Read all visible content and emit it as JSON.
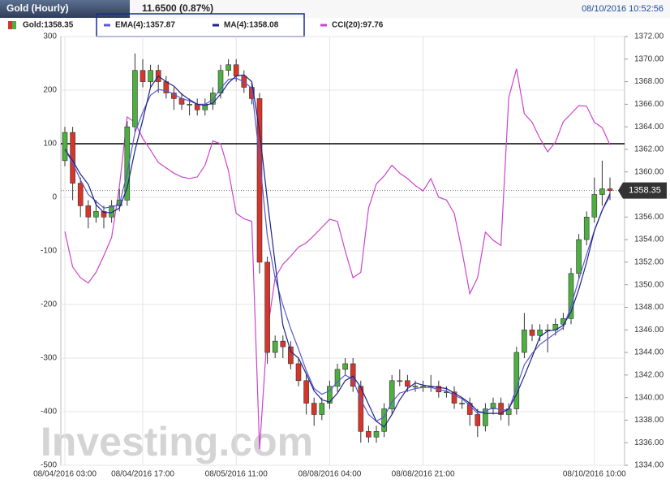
{
  "chart_data": {
    "type": "candlestick",
    "title": "Gold (Hourly)",
    "change": "11.6500 (0.87%)",
    "timestamp": "08/10/2016 10:52:56",
    "watermark": "Investing.com",
    "categories": [
      "08/04/2016 03:00",
      null,
      null,
      null,
      null,
      null,
      null,
      null,
      null,
      null,
      "08/04/2016 17:00",
      null,
      null,
      null,
      null,
      null,
      null,
      null,
      null,
      null,
      null,
      null,
      "08/05/2016 11:00",
      null,
      null,
      null,
      null,
      null,
      null,
      null,
      null,
      null,
      null,
      null,
      "08/08/2016 04:00",
      null,
      null,
      null,
      null,
      null,
      null,
      null,
      null,
      null,
      null,
      null,
      "08/08/2016 21:00",
      null,
      null,
      null,
      null,
      null,
      null,
      null,
      null,
      null,
      null,
      null,
      null,
      null,
      null,
      null,
      null,
      null,
      null,
      null,
      null,
      null,
      "08/10/2016 10:00",
      null,
      null
    ],
    "candles": {
      "name": "Gold:1358.35",
      "up_color": "#4caf3f",
      "down_color": "#d8352a",
      "open": [
        1361,
        1363.5,
        1359,
        1357,
        1356,
        1356.5,
        1356,
        1357,
        1357.5,
        1364,
        1369,
        1368,
        1369,
        1368,
        1367,
        1366.5,
        1366,
        1366,
        1365.5,
        1366,
        1367,
        1369,
        1369.5,
        1368.5,
        1367.5,
        1366.5,
        1352,
        1344,
        1345,
        1344.5,
        1343,
        1341.5,
        1339.5,
        1338.5,
        1339.5,
        1341,
        1342.5,
        1343,
        1341,
        1337,
        1336.5,
        1337,
        1339,
        1341.5,
        1341.5,
        1341,
        1341,
        1341,
        1341,
        1340.5,
        1340.5,
        1339.5,
        1339.5,
        1338.5,
        1337.5,
        1339,
        1339.5,
        1338.5,
        1339,
        1344,
        1346,
        1345.5,
        1346,
        1346,
        1346.5,
        1347,
        1351,
        1354,
        1356,
        1358,
        1358.5
      ],
      "high": [
        1364,
        1364,
        1359.5,
        1357.5,
        1357.5,
        1357,
        1357.5,
        1358.5,
        1364.5,
        1370.5,
        1370,
        1369.5,
        1369.5,
        1368.5,
        1367.5,
        1367,
        1366.5,
        1366.5,
        1366.5,
        1367.5,
        1369.5,
        1370,
        1370,
        1369,
        1368,
        1367,
        1352.5,
        1345.5,
        1345.5,
        1345,
        1343.5,
        1342,
        1340,
        1340,
        1341.5,
        1343,
        1343.5,
        1343.5,
        1341.5,
        1337.5,
        1337.5,
        1339.5,
        1342,
        1342.5,
        1342,
        1341.5,
        1341.5,
        1342,
        1341.5,
        1341,
        1341,
        1340,
        1340,
        1339,
        1339.5,
        1340,
        1340,
        1339.5,
        1344.5,
        1347.5,
        1346.5,
        1346.5,
        1346.5,
        1347,
        1347.5,
        1351.5,
        1354.5,
        1356.5,
        1359.5,
        1361,
        1359.5
      ],
      "low": [
        1360.5,
        1357.5,
        1356,
        1355,
        1355.5,
        1355,
        1355.5,
        1356.5,
        1357,
        1363.5,
        1367.5,
        1367.5,
        1367,
        1366.5,
        1365.5,
        1365.5,
        1365,
        1365,
        1365,
        1365.5,
        1366.5,
        1368.5,
        1368,
        1367,
        1366,
        1351,
        1343,
        1343.5,
        1343.5,
        1342.5,
        1341,
        1338.5,
        1337.5,
        1338,
        1339,
        1340.5,
        1342,
        1340.5,
        1336,
        1336,
        1336,
        1336.5,
        1338.5,
        1341,
        1340.5,
        1340.5,
        1340.5,
        1340.5,
        1340,
        1340,
        1339,
        1339,
        1337.5,
        1336.5,
        1337,
        1338.5,
        1338,
        1337.5,
        1338.5,
        1343.5,
        1345,
        1345,
        1344,
        1345.5,
        1346,
        1346.5,
        1350.5,
        1353.5,
        1355.5,
        1357,
        1357.5
      ],
      "close": [
        1363.5,
        1359,
        1357,
        1356,
        1356.5,
        1356,
        1357,
        1357.5,
        1364,
        1369,
        1368,
        1369,
        1368,
        1367,
        1366.5,
        1366,
        1366,
        1365.5,
        1366,
        1367,
        1369,
        1369.5,
        1368.5,
        1367.5,
        1366.5,
        1352,
        1344,
        1345,
        1344.5,
        1343,
        1341.5,
        1339.5,
        1338.5,
        1339.5,
        1341,
        1342.5,
        1343,
        1341,
        1337,
        1336.5,
        1337,
        1339,
        1341.5,
        1341.5,
        1341,
        1341,
        1341,
        1341,
        1340.5,
        1340.5,
        1339.5,
        1339.5,
        1338.5,
        1337.5,
        1339,
        1339.5,
        1338.5,
        1339,
        1344,
        1346,
        1345.5,
        1346,
        1346,
        1346.5,
        1347,
        1351,
        1354,
        1356,
        1358,
        1358.5,
        1358.35
      ]
    },
    "series": [
      {
        "name": "EMA(4):1357.87",
        "color": "#5a5ad0",
        "values": [
          1362,
          1360.8,
          1359.3,
          1358,
          1357.4,
          1356.8,
          1356.9,
          1357.1,
          1359.9,
          1363.5,
          1365.3,
          1366.8,
          1367.3,
          1367.2,
          1366.9,
          1366.5,
          1366.3,
          1366,
          1366,
          1366.4,
          1367.4,
          1368.2,
          1368.3,
          1368,
          1367.4,
          1361.2,
          1354.3,
          1350.6,
          1348.2,
          1346.1,
          1344.3,
          1342.4,
          1340.8,
          1340.3,
          1340.6,
          1341.4,
          1342,
          1341.6,
          1339.8,
          1338.5,
          1337.9,
          1338.3,
          1339.6,
          1340.4,
          1340.6,
          1340.8,
          1340.9,
          1340.9,
          1340.7,
          1340.6,
          1340.2,
          1339.9,
          1339.3,
          1338.6,
          1338.8,
          1339.1,
          1338.9,
          1338.9,
          1340.9,
          1342.9,
          1343.9,
          1344.7,
          1345.2,
          1345.7,
          1346.2,
          1348.1,
          1350.5,
          1352.7,
          1354.8,
          1356.6,
          1357.87
        ]
      },
      {
        "name": "MA(4):1358.08",
        "color": "#1c2585",
        "values": [
          1362,
          1361,
          1359.8,
          1358.9,
          1357.1,
          1356.4,
          1356.4,
          1356.8,
          1358.6,
          1361.9,
          1364.6,
          1367.5,
          1368.5,
          1368,
          1367.6,
          1366.9,
          1366.4,
          1366,
          1365.9,
          1366.1,
          1366.9,
          1367.9,
          1368.5,
          1368.6,
          1368,
          1363.6,
          1357.5,
          1351.9,
          1346.4,
          1344.1,
          1343.5,
          1342.1,
          1340.6,
          1339.8,
          1339.6,
          1340.4,
          1341.5,
          1341.9,
          1340.9,
          1339.4,
          1337.9,
          1337.4,
          1338.5,
          1339.8,
          1340.8,
          1341.3,
          1341.1,
          1341,
          1340.9,
          1340.8,
          1340.4,
          1340,
          1339.5,
          1338.8,
          1338.6,
          1338.6,
          1338.6,
          1339,
          1340.3,
          1341.9,
          1343.6,
          1345.4,
          1345.9,
          1346,
          1346.4,
          1347.6,
          1349.6,
          1352,
          1354.8,
          1356.6,
          1358.08
        ]
      },
      {
        "name": "CCI(20):97.76",
        "color": "#cc44cc",
        "axis": "y2",
        "values": [
          -64,
          -130,
          -150,
          -160,
          -140,
          -109,
          -75,
          20,
          150,
          140,
          110,
          88,
          65,
          55,
          45,
          38,
          35,
          38,
          60,
          105,
          100,
          50,
          -30,
          -40,
          -45,
          -470,
          -250,
          -150,
          -125,
          -110,
          -93,
          -85,
          -71,
          -56,
          -41,
          -45,
          -100,
          -150,
          -140,
          -20,
          25,
          40,
          60,
          45,
          35,
          22,
          12,
          35,
          0,
          -5,
          -30,
          -100,
          -180,
          -150,
          -65,
          -80,
          -90,
          186,
          240,
          156,
          140,
          110,
          85,
          103,
          141,
          156,
          171,
          170,
          140,
          130,
          97.76
        ]
      }
    ],
    "last_price": 1358.35,
    "reference_level": 100,
    "ylim": [
      1334,
      1372
    ],
    "yticks": [
      {
        "value": 1334,
        "label": "1334.00"
      },
      {
        "value": 1336,
        "label": "1336.00"
      },
      {
        "value": 1338,
        "label": "1338.00"
      },
      {
        "value": 1340,
        "label": "1340.00"
      },
      {
        "value": 1342,
        "label": "1342.00"
      },
      {
        "value": 1344,
        "label": "1344.00"
      },
      {
        "value": 1346,
        "label": "1346.00"
      },
      {
        "value": 1348,
        "label": "1348.00"
      },
      {
        "value": 1350,
        "label": "1350.00"
      },
      {
        "value": 1352,
        "label": "1352.00"
      },
      {
        "value": 1354,
        "label": "1354.00"
      },
      {
        "value": 1356,
        "label": "1356.00"
      },
      {
        "value": 1358,
        "label": "1358.00"
      },
      {
        "value": 1360,
        "label": "1360.00"
      },
      {
        "value": 1362,
        "label": "1362.00"
      },
      {
        "value": 1364,
        "label": "1364.00"
      },
      {
        "value": 1366,
        "label": "1366.00"
      },
      {
        "value": 1368,
        "label": "1368.00"
      },
      {
        "value": 1370,
        "label": "1370.00"
      },
      {
        "value": 1372,
        "label": "1372.00"
      }
    ],
    "y2lim": [
      -500,
      300
    ],
    "y2ticks": [
      300,
      200,
      100,
      0,
      -100,
      -200,
      -300,
      -400,
      -500
    ],
    "grid": true
  }
}
